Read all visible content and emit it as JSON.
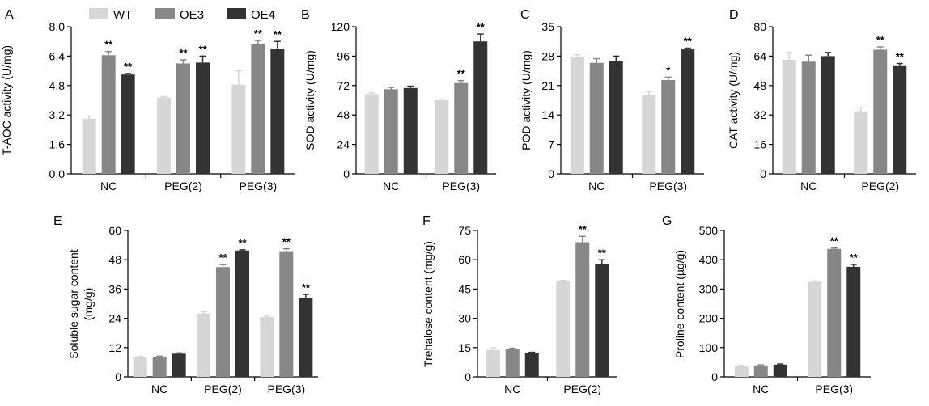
{
  "legend": [
    {
      "name": "WT",
      "color": "#d6d6d6"
    },
    {
      "name": "OE3",
      "color": "#878787"
    },
    {
      "name": "OE4",
      "color": "#333333"
    }
  ],
  "chart_data": [
    {
      "panel": "A",
      "type": "bar",
      "ylabel": "T-AOC activity (U/mg)",
      "ylim": [
        0,
        8.0
      ],
      "yticks": [
        "0.0",
        "1.6",
        "3.2",
        "4.8",
        "6.4",
        "8.0"
      ],
      "categories": [
        "NC",
        "PEG(2)",
        "PEG(3)"
      ],
      "series": [
        {
          "name": "WT",
          "values": [
            3.0,
            4.15,
            4.85
          ],
          "errors": [
            0.15,
            0.05,
            0.75
          ],
          "marks": [
            "",
            "",
            ""
          ]
        },
        {
          "name": "OE3",
          "values": [
            6.45,
            6.0,
            7.05
          ],
          "errors": [
            0.2,
            0.2,
            0.2
          ],
          "marks": [
            "**",
            "**",
            "**"
          ]
        },
        {
          "name": "OE4",
          "values": [
            5.4,
            6.05,
            6.8
          ],
          "errors": [
            0.05,
            0.35,
            0.4
          ],
          "marks": [
            "**",
            "**",
            "**"
          ]
        }
      ]
    },
    {
      "panel": "B",
      "type": "bar",
      "ylabel": "SOD activity (U/mg)",
      "ylim": [
        0,
        120
      ],
      "yticks": [
        "0",
        "24",
        "48",
        "72",
        "96",
        "120"
      ],
      "categories": [
        "NC",
        "PEG(3)"
      ],
      "series": [
        {
          "name": "WT",
          "values": [
            65,
            60
          ],
          "errors": [
            1,
            1
          ],
          "marks": [
            "",
            ""
          ]
        },
        {
          "name": "OE3",
          "values": [
            69,
            74
          ],
          "errors": [
            1.5,
            2
          ],
          "marks": [
            "",
            "**"
          ]
        },
        {
          "name": "OE4",
          "values": [
            70,
            108
          ],
          "errors": [
            1.5,
            6
          ],
          "marks": [
            "",
            "**"
          ]
        }
      ]
    },
    {
      "panel": "C",
      "type": "bar",
      "ylabel": "POD activity (U/mg)",
      "ylim": [
        0,
        35
      ],
      "yticks": [
        "0",
        "7",
        "14",
        "21",
        "28",
        "35"
      ],
      "categories": [
        "NC",
        "PEG(3)"
      ],
      "series": [
        {
          "name": "WT",
          "values": [
            27.7,
            18.8
          ],
          "errors": [
            0.6,
            0.8
          ],
          "marks": [
            "",
            ""
          ]
        },
        {
          "name": "OE3",
          "values": [
            26.4,
            22.3
          ],
          "errors": [
            1.0,
            0.7
          ],
          "marks": [
            "",
            "*"
          ]
        },
        {
          "name": "OE4",
          "values": [
            26.8,
            29.6
          ],
          "errors": [
            1.2,
            0.3
          ],
          "marks": [
            "",
            "**"
          ]
        }
      ]
    },
    {
      "panel": "D",
      "type": "bar",
      "ylabel": "CAT activity (U/mg)",
      "ylim": [
        0,
        80
      ],
      "yticks": [
        "0",
        "16",
        "32",
        "48",
        "64",
        "80"
      ],
      "categories": [
        "NC",
        "PEG(2)"
      ],
      "series": [
        {
          "name": "WT",
          "values": [
            62,
            34
          ],
          "errors": [
            4,
            2
          ],
          "marks": [
            "",
            ""
          ]
        },
        {
          "name": "OE3",
          "values": [
            61,
            67.5
          ],
          "errors": [
            3.5,
            1.5
          ],
          "marks": [
            "",
            "**"
          ]
        },
        {
          "name": "OE4",
          "values": [
            64,
            59
          ],
          "errors": [
            2,
            1
          ],
          "marks": [
            "",
            "**"
          ]
        }
      ]
    },
    {
      "panel": "E",
      "type": "bar",
      "ylabel": "Soluble sugar content (mg/g)",
      "ylim": [
        0,
        60
      ],
      "yticks": [
        "0",
        "12",
        "24",
        "36",
        "48",
        "60"
      ],
      "categories": [
        "NC",
        "PEG(2)",
        "PEG(3)"
      ],
      "series": [
        {
          "name": "WT",
          "values": [
            8,
            26,
            24.5
          ],
          "errors": [
            0.3,
            0.8,
            0.5
          ],
          "marks": [
            "",
            "",
            ""
          ]
        },
        {
          "name": "OE3",
          "values": [
            8.2,
            45,
            51.5
          ],
          "errors": [
            0.3,
            1,
            1
          ],
          "marks": [
            "",
            "**",
            "**"
          ]
        },
        {
          "name": "OE4",
          "values": [
            9.5,
            51.8,
            32.5
          ],
          "errors": [
            0.3,
            0.3,
            1.3
          ],
          "marks": [
            "",
            "**",
            "**"
          ]
        }
      ]
    },
    {
      "panel": "F",
      "type": "bar",
      "ylabel": "Trehalose content (mg/g)",
      "ylim": [
        0,
        75
      ],
      "yticks": [
        "0",
        "15",
        "30",
        "45",
        "60",
        "75"
      ],
      "categories": [
        "NC",
        "PEG(2)"
      ],
      "series": [
        {
          "name": "WT",
          "values": [
            13.8,
            49
          ],
          "errors": [
            1.2,
            0.5
          ],
          "marks": [
            "",
            ""
          ]
        },
        {
          "name": "OE3",
          "values": [
            14.2,
            69
          ],
          "errors": [
            0.5,
            3
          ],
          "marks": [
            "",
            "**"
          ]
        },
        {
          "name": "OE4",
          "values": [
            12,
            58
          ],
          "errors": [
            0.6,
            2
          ],
          "marks": [
            "",
            "**"
          ]
        }
      ]
    },
    {
      "panel": "G",
      "type": "bar",
      "ylabel": "Proline content (µg/g)",
      "ylim": [
        0,
        500
      ],
      "yticks": [
        "0",
        "100",
        "200",
        "300",
        "400",
        "500"
      ],
      "categories": [
        "NC",
        "PEG(3)"
      ],
      "series": [
        {
          "name": "WT",
          "values": [
            37,
            325
          ],
          "errors": [
            2,
            3
          ],
          "marks": [
            "",
            ""
          ]
        },
        {
          "name": "OE3",
          "values": [
            39,
            437
          ],
          "errors": [
            2,
            3
          ],
          "marks": [
            "",
            "**"
          ]
        },
        {
          "name": "OE4",
          "values": [
            42,
            376
          ],
          "errors": [
            2,
            8
          ],
          "marks": [
            "",
            "**"
          ]
        }
      ]
    }
  ]
}
